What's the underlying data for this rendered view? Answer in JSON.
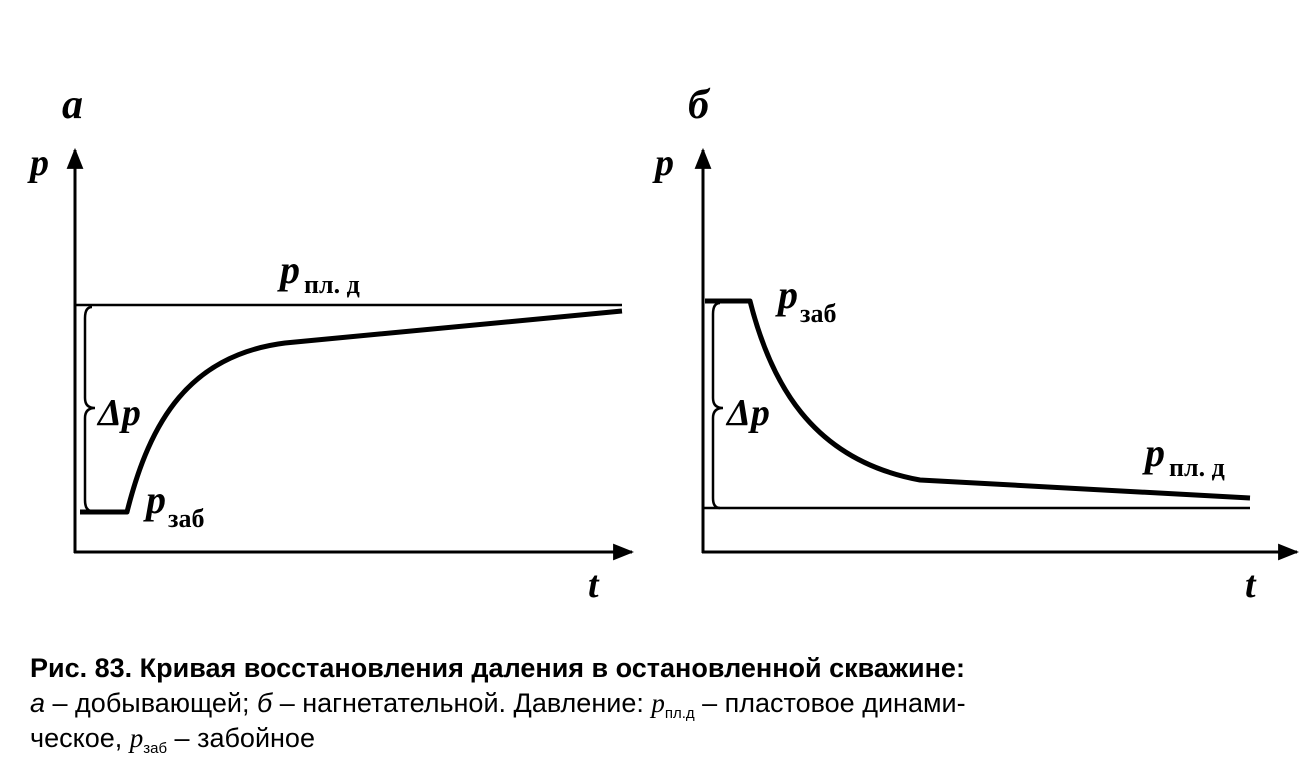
{
  "panels": [
    {
      "letter": "а",
      "y_axis": "p",
      "x_axis": "t",
      "delta": "Δp",
      "upper_label": {
        "main": "p",
        "sub": "пл. д"
      },
      "lower_label": {
        "main": "p",
        "sub": "заб"
      }
    },
    {
      "letter": "б",
      "y_axis": "p",
      "x_axis": "t",
      "delta": "Δp",
      "upper_label": {
        "main": "p",
        "sub": "заб"
      },
      "lower_label": {
        "main": "p",
        "sub": "пл. д"
      }
    }
  ],
  "caption": {
    "title": "Рис. 83. Кривая восстановления даления в остановленной скважине:",
    "line2": [
      "а",
      " – добывающей; ",
      "б",
      " – нагнетательной. Давление: ",
      "p",
      "пл.д",
      " – пластовое динами-"
    ],
    "line3": [
      "ческое, ",
      "p",
      "заб",
      " – забойное"
    ]
  }
}
